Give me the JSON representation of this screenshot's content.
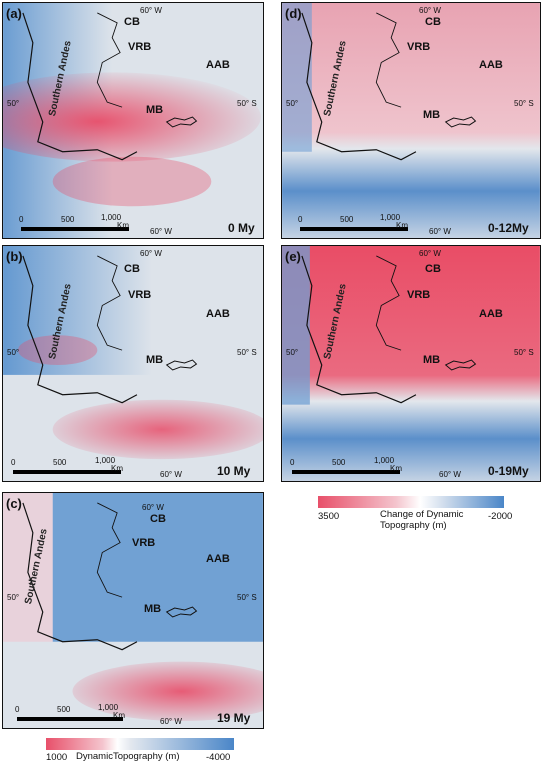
{
  "panels": [
    {
      "letter": "(a)",
      "age": "0 My",
      "cb": "CB",
      "vrb": "VRB",
      "aab": "AAB",
      "mb": "MB",
      "andes": "Southern Andes",
      "lon_top": "60° W",
      "lon_bottom": "60° W",
      "lat_left": "50°",
      "lat_right": "50° S",
      "scale": [
        "0",
        "500",
        "1,000",
        "Km"
      ]
    },
    {
      "letter": "(b)",
      "age": "10 My",
      "cb": "CB",
      "vrb": "VRB",
      "aab": "AAB",
      "mb": "MB",
      "andes": "Southern Andes",
      "lon_top": "60° W",
      "lon_bottom": "60° W",
      "lat_left": "50°",
      "lat_right": "50° S",
      "scale": [
        "0",
        "500",
        "1,000",
        "Km"
      ]
    },
    {
      "letter": "(c)",
      "age": "19 My",
      "cb": "CB",
      "vrb": "VRB",
      "aab": "AAB",
      "mb": "MB",
      "andes": "Southern Andes",
      "lon_top": "60° W",
      "lon_bottom": "60° W",
      "lat_left": "50°",
      "lat_right": "50° S",
      "scale": [
        "0",
        "500",
        "1,000",
        "Km"
      ]
    },
    {
      "letter": "(d)",
      "age": "0-12My",
      "cb": "CB",
      "vrb": "VRB",
      "aab": "AAB",
      "mb": "MB",
      "andes": "Southern Andes",
      "lon_top": "60° W",
      "lon_bottom": "60° W",
      "lat_left": "50°",
      "lat_right": "50° S",
      "scale": [
        "0",
        "500",
        "1,000",
        "Km"
      ]
    },
    {
      "letter": "(e)",
      "age": "0-19My",
      "cb": "CB",
      "vrb": "VRB",
      "aab": "AAB",
      "mb": "MB",
      "andes": "Southern Andes",
      "lon_top": "60° W",
      "lon_bottom": "60° W",
      "lat_left": "50°",
      "lat_right": "50° S",
      "scale": [
        "0",
        "500",
        "1,000",
        "Km"
      ]
    }
  ],
  "legend_change": {
    "min": "3500",
    "title1": "Change of Dynamic",
    "title2": "Topography (m)",
    "max": "-2000",
    "color_pos": "#e8506a",
    "color_neg": "#4a86c8"
  },
  "legend_dynamic": {
    "min": "1000",
    "title": "DynamicTopography (m)",
    "max": "-4000",
    "color_pos": "#e8506a",
    "color_neg": "#4a86c8"
  }
}
